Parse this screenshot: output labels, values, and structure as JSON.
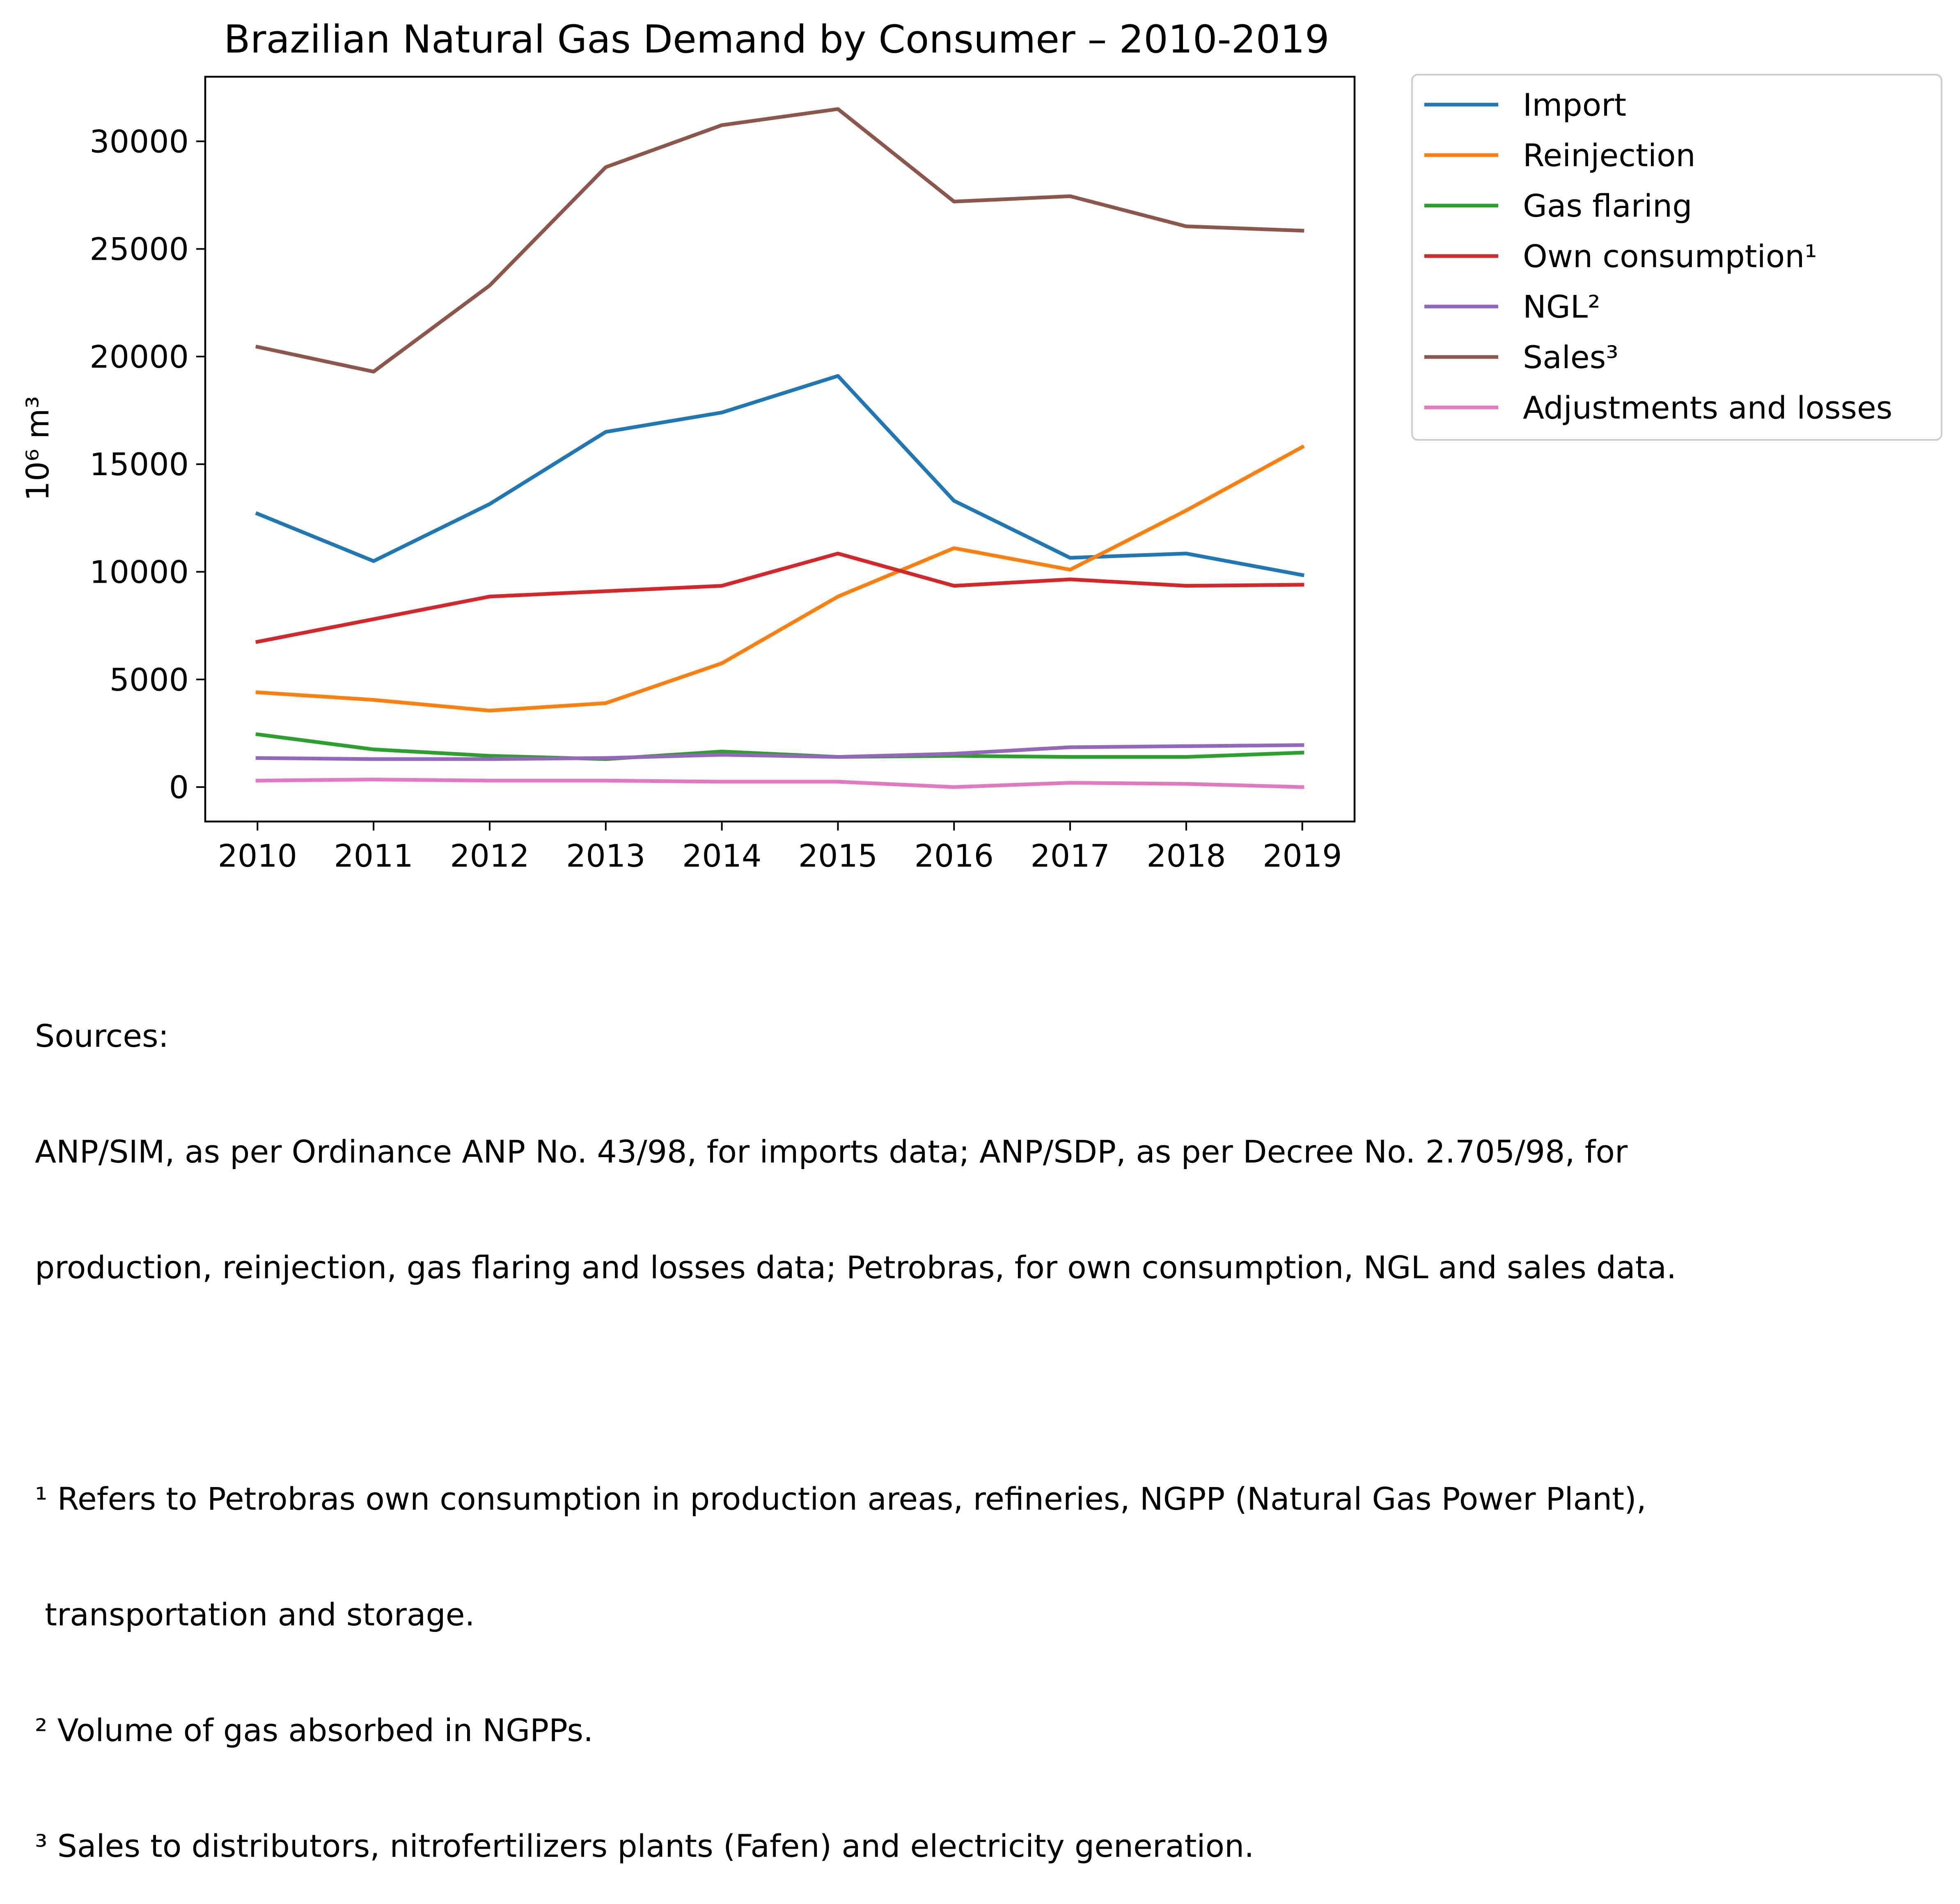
{
  "chart_data": {
    "type": "line",
    "title": "Brazilian Natural Gas Demand by Consumer – 2010-2019",
    "xlabel": "",
    "ylabel": "10⁶ m³",
    "x": [
      2010,
      2011,
      2012,
      2013,
      2014,
      2015,
      2016,
      2017,
      2018,
      2019
    ],
    "ylim": [
      -1600,
      33000
    ],
    "yticks": [
      0,
      5000,
      10000,
      15000,
      20000,
      25000,
      30000
    ],
    "grid": false,
    "legend_position": "outside-right",
    "series": [
      {
        "name": "Import",
        "color": "#1f77b4",
        "values": [
          12700,
          10500,
          13150,
          16500,
          17400,
          19100,
          13300,
          10650,
          10850,
          9850
        ]
      },
      {
        "name": "Reinjection",
        "color": "#ff7f0e",
        "values": [
          4400,
          4050,
          3550,
          3900,
          5750,
          8850,
          11100,
          10100,
          12850,
          15800
        ]
      },
      {
        "name": "Gas flaring",
        "color": "#2ca02c",
        "values": [
          2450,
          1750,
          1450,
          1300,
          1650,
          1400,
          1450,
          1400,
          1400,
          1600
        ]
      },
      {
        "name": "Own consumption¹",
        "color": "#d62728",
        "values": [
          6750,
          7800,
          8850,
          9100,
          9350,
          10850,
          9350,
          9650,
          9350,
          9400
        ]
      },
      {
        "name": "NGL²",
        "color": "#9467bd",
        "values": [
          1350,
          1300,
          1300,
          1350,
          1500,
          1400,
          1550,
          1850,
          1900,
          1950
        ]
      },
      {
        "name": "Sales³",
        "color": "#8c564b",
        "values": [
          20450,
          19300,
          23300,
          28800,
          30750,
          31500,
          27200,
          27450,
          26050,
          25850
        ]
      },
      {
        "name": "Adjustments and losses",
        "color": "#e377c2",
        "values": [
          300,
          350,
          300,
          300,
          250,
          250,
          0,
          200,
          150,
          0
        ]
      }
    ]
  },
  "notes": [
    "Sources:",
    "ANP/SIM, as per Ordinance ANP No. 43/98, for imports data; ANP/SDP, as per Decree No. 2.705/98, for",
    "production, reinjection, gas flaring and losses data; Petrobras, for own consumption, NGL and sales data.",
    "",
    "¹ Refers to Petrobras own consumption in production areas, refineries, NGPP (Natural Gas Power Plant),",
    " transportation and storage.",
    "² Volume of gas absorbed in NGPPs.",
    "³ Sales to distributors, nitrofertilizers plants (Fafen) and electricity generation."
  ]
}
